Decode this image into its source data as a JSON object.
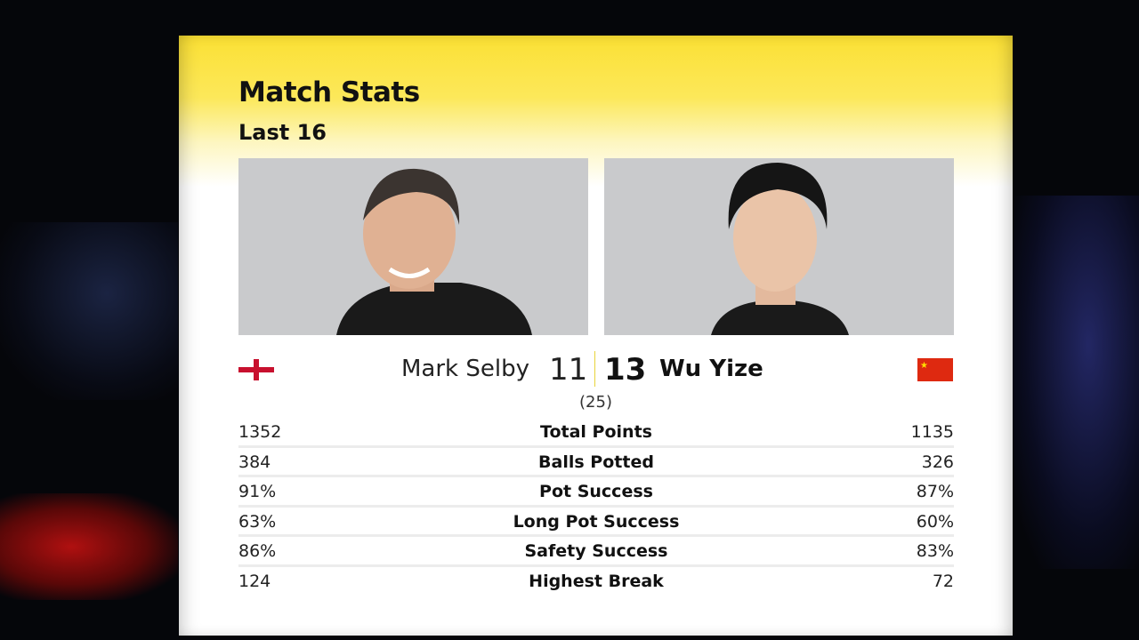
{
  "header": {
    "title": "Match Stats",
    "round": "Last 16"
  },
  "players": [
    {
      "name": "Mark Selby",
      "score": "11",
      "flag": "england-flag-icon",
      "photo": "mark-selby-photo"
    },
    {
      "name": "Wu Yize",
      "score": "13",
      "flag": "china-flag-icon",
      "photo": "wu-yize-photo"
    }
  ],
  "frames": "(25)",
  "stats": [
    {
      "label": "Total Points",
      "left": "1352",
      "right": "1135"
    },
    {
      "label": "Balls Potted",
      "left": "384",
      "right": "326"
    },
    {
      "label": "Pot Success",
      "left": "91%",
      "right": "87%"
    },
    {
      "label": "Long Pot Success",
      "left": "63%",
      "right": "60%"
    },
    {
      "label": "Safety Success",
      "left": "86%",
      "right": "83%"
    },
    {
      "label": "Highest Break",
      "left": "124",
      "right": "72"
    }
  ],
  "colors": {
    "header_yellow": "#fbe034",
    "england_red": "#c8102e",
    "china_red": "#de2910"
  }
}
